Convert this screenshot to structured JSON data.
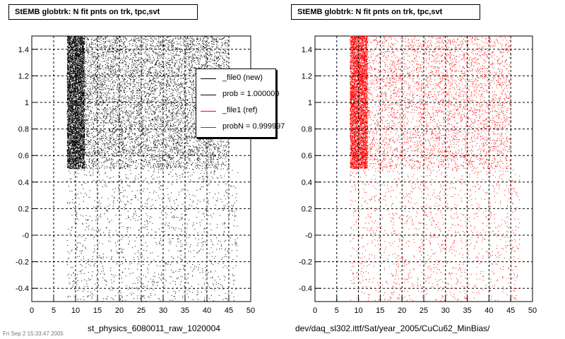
{
  "titles": {
    "left": "StEMB globtrk: N fit pnts on trk, tpc,svt",
    "right": "StEMB globtrk: N fit pnts on trk, tpc,svt"
  },
  "bottom_labels": {
    "left": "st_physics_6080011_raw_1020004",
    "right": "dev/daq_sl302.ittf/Sat/year_2005/CuCu62_MinBias/"
  },
  "legend": {
    "entries": [
      {
        "label": "_file0 (new)",
        "color": "#000000"
      },
      {
        "label": "prob = 1.000000",
        "color": "#000000"
      },
      {
        "label": "_file1 (ref)",
        "color": "#ff0000"
      },
      {
        "label": "probN = 0.999997",
        "color": "#ff0000"
      }
    ]
  },
  "timestamp": "Fri Sep  2 15:33:47 2005",
  "chart_data": [
    {
      "type": "scatter",
      "series_color": "#000000",
      "xlim": [
        0,
        50
      ],
      "ylim": [
        -0.5,
        1.5
      ],
      "x_ticks": [
        "0",
        "5",
        "10",
        "15",
        "20",
        "25",
        "30",
        "35",
        "40",
        "45",
        "50"
      ],
      "y_ticks": [
        "-0.4",
        "-0.2",
        "-0",
        "0.2",
        "0.4",
        "0.6",
        "0.8",
        "1",
        "1.2",
        "1.4"
      ],
      "grid": true,
      "density_regions": [
        {
          "x": [
            8,
            12
          ],
          "y": [
            0.5,
            1.5
          ],
          "density": "very high"
        },
        {
          "x": [
            12,
            45
          ],
          "y": [
            0.5,
            1.5
          ],
          "density": "high"
        },
        {
          "x": [
            8,
            47
          ],
          "y": [
            -0.5,
            0.5
          ],
          "density": "low"
        }
      ]
    },
    {
      "type": "scatter",
      "series_color": "#ff0000",
      "xlim": [
        0,
        50
      ],
      "ylim": [
        -0.5,
        1.5
      ],
      "x_ticks": [
        "0",
        "5",
        "10",
        "15",
        "20",
        "25",
        "30",
        "35",
        "40",
        "45",
        "50"
      ],
      "y_ticks": [
        "-0.4",
        "-0.2",
        "-0",
        "0.2",
        "0.4",
        "0.6",
        "0.8",
        "1",
        "1.2",
        "1.4"
      ],
      "grid": true,
      "density_regions": [
        {
          "x": [
            8,
            12
          ],
          "y": [
            0.5,
            1.5
          ],
          "density": "very high"
        },
        {
          "x": [
            12,
            45
          ],
          "y": [
            0.5,
            1.5
          ],
          "density": "medium"
        },
        {
          "x": [
            8,
            47
          ],
          "y": [
            -0.5,
            0.5
          ],
          "density": "low"
        }
      ]
    }
  ]
}
